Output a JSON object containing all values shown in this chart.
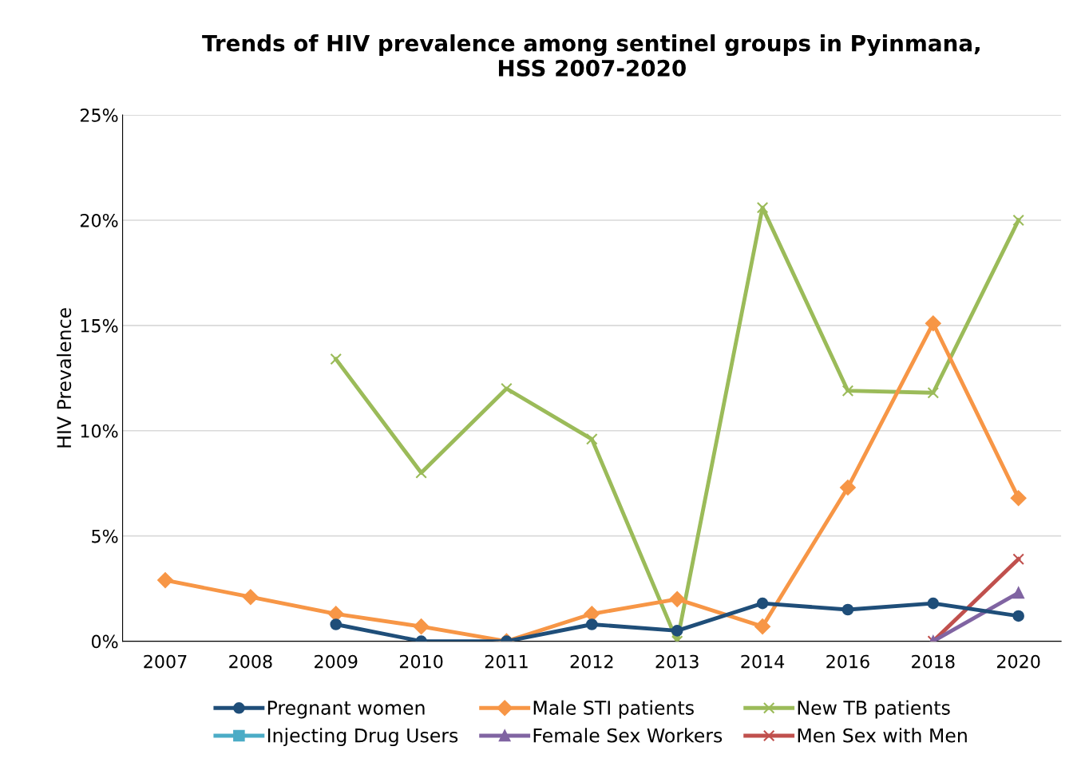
{
  "chart_data": {
    "type": "line",
    "title": "Trends of HIV prevalence among sentinel groups in Pyinmana,\nHSS 2007-2020",
    "ylabel": "HIV Prevalence",
    "categories": [
      "2007",
      "2008",
      "2009",
      "2010",
      "2011",
      "2012",
      "2013",
      "2014",
      "2016",
      "2018",
      "2020"
    ],
    "series": [
      {
        "name": "Pregnant women",
        "color": "#1f4e79",
        "marker": "circle",
        "values": [
          null,
          null,
          0.8,
          0,
          0,
          0.8,
          0.5,
          1.8,
          1.5,
          1.8,
          1.2
        ]
      },
      {
        "name": "Male STI patients",
        "color": "#f79646",
        "marker": "diamond",
        "values": [
          2.9,
          2.1,
          1.3,
          0.7,
          0,
          1.3,
          2.0,
          0.7,
          7.3,
          15.1,
          6.8
        ]
      },
      {
        "name": "New TB patients",
        "color": "#9bbb59",
        "marker": "cross",
        "values": [
          null,
          null,
          13.4,
          8.0,
          12.0,
          9.6,
          0,
          20.6,
          11.9,
          11.8,
          20.0
        ]
      },
      {
        "name": "Injecting Drug Users",
        "color": "#4bacc6",
        "marker": "square",
        "values": [
          null,
          null,
          null,
          null,
          null,
          null,
          null,
          null,
          null,
          null,
          null
        ]
      },
      {
        "name": "Female Sex Workers",
        "color": "#8064a2",
        "marker": "triangle",
        "values": [
          null,
          null,
          null,
          null,
          null,
          null,
          null,
          null,
          null,
          0,
          2.3
        ]
      },
      {
        "name": "Men Sex with Men",
        "color": "#c0504d",
        "marker": "cross",
        "values": [
          null,
          null,
          null,
          null,
          null,
          null,
          null,
          null,
          null,
          0,
          3.9
        ]
      }
    ],
    "ylim": [
      0,
      25
    ],
    "yticks": [
      {
        "value": 0,
        "label": "0%"
      },
      {
        "value": 5,
        "label": "5%"
      },
      {
        "value": 10,
        "label": "10%"
      },
      {
        "value": 15,
        "label": "15%"
      },
      {
        "value": 20,
        "label": "20%"
      },
      {
        "value": 25,
        "label": "25%"
      }
    ],
    "grid": "y",
    "legend": "bottom",
    "line_style": "solid"
  }
}
